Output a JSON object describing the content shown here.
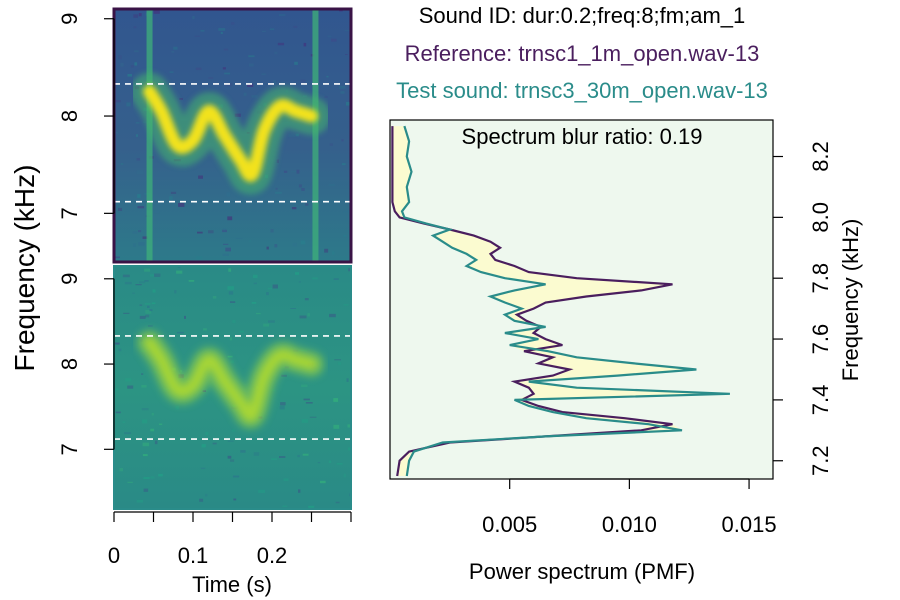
{
  "titles": {
    "sound_id": "Sound ID: dur:0.2;freq:8;fm;am_1",
    "reference": "Reference: trnsc1_1m_open.wav-13",
    "test": "Test sound: trnsc3_30m_open.wav-13"
  },
  "colors": {
    "reference": "#4a1e5e",
    "test": "#2a8c8a",
    "title": "#000000",
    "fill_between": "#fbfbd0",
    "plot_bg": "#eef8ee",
    "spec_dark": "#3b5a8e",
    "spec_mid": "#22908b",
    "spec_bright": "#f2e21c",
    "dashed": "#ffffff"
  },
  "chart_data": [
    {
      "type": "heatmap",
      "name": "reference spectrogram",
      "ylabel": "Frequency (kHz)",
      "ylim": [
        6.5,
        9.1
      ],
      "xlim": [
        0,
        0.3
      ],
      "y_ticks": [
        "7",
        "8",
        "9"
      ],
      "y_tick_values": [
        7,
        8,
        9
      ],
      "dashed_lines_khz": [
        7.12,
        8.33
      ],
      "signal_start_s": 0.045,
      "signal_end_s": 0.255,
      "contour": {
        "t": [
          0.045,
          0.06,
          0.08,
          0.1,
          0.12,
          0.14,
          0.16,
          0.175,
          0.19,
          0.21,
          0.23,
          0.25
        ],
        "f": [
          8.25,
          8.05,
          7.7,
          7.75,
          8.05,
          7.8,
          7.55,
          7.4,
          7.85,
          8.1,
          8.05,
          8.0
        ]
      }
    },
    {
      "type": "heatmap",
      "name": "test spectrogram",
      "ylim": [
        6.3,
        9.15
      ],
      "xlim": [
        0,
        0.3
      ],
      "y_ticks": [
        "7",
        "8",
        "9"
      ],
      "y_tick_values": [
        7,
        8,
        9
      ],
      "x_ticks": [
        "0",
        "0.1",
        "0.2"
      ],
      "x_tick_values": [
        0,
        0.1,
        0.2
      ],
      "x_minor_ticks": [
        0.05,
        0.15,
        0.25,
        0.3
      ],
      "xlabel": "Time (s)",
      "dashed_lines_khz": [
        7.12,
        8.33
      ],
      "contour": {
        "t": [
          0.045,
          0.06,
          0.08,
          0.1,
          0.12,
          0.14,
          0.16,
          0.175,
          0.19,
          0.21,
          0.23,
          0.25
        ],
        "f": [
          8.25,
          8.05,
          7.7,
          7.75,
          8.05,
          7.8,
          7.55,
          7.4,
          7.85,
          8.1,
          8.05,
          8.0
        ]
      }
    },
    {
      "type": "line",
      "name": "power spectrum comparison",
      "annotation": "Spectrum blur ratio: 0.19",
      "xlabel": "Power spectrum (PMF)",
      "ylabel": "Frequency (kHz)",
      "xlim": [
        0,
        0.016
      ],
      "ylim": [
        7.14,
        8.32
      ],
      "x_ticks": [
        "0.005",
        "0.010",
        "0.015"
      ],
      "x_tick_values": [
        0.005,
        0.01,
        0.015
      ],
      "y_ticks": [
        "7.2",
        "7.4",
        "7.6",
        "7.8",
        "8.0",
        "8.2"
      ],
      "y_tick_values": [
        7.2,
        7.4,
        7.6,
        7.8,
        8.0,
        8.2
      ],
      "freq_khz": [
        7.15,
        7.2,
        7.23,
        7.26,
        7.28,
        7.3,
        7.32,
        7.34,
        7.36,
        7.38,
        7.4,
        7.42,
        7.44,
        7.46,
        7.48,
        7.5,
        7.52,
        7.54,
        7.56,
        7.58,
        7.6,
        7.62,
        7.64,
        7.66,
        7.68,
        7.7,
        7.72,
        7.74,
        7.76,
        7.78,
        7.8,
        7.82,
        7.84,
        7.86,
        7.88,
        7.9,
        7.92,
        7.94,
        7.96,
        7.98,
        8.0,
        8.02,
        8.05,
        8.1,
        8.15,
        8.2,
        8.25,
        8.3
      ],
      "series": [
        {
          "name": "Reference",
          "values": [
            0.0003,
            0.0004,
            0.0008,
            0.0025,
            0.0065,
            0.0105,
            0.0118,
            0.0098,
            0.0072,
            0.0062,
            0.0055,
            0.006,
            0.0058,
            0.0052,
            0.0068,
            0.0075,
            0.0062,
            0.0068,
            0.0056,
            0.0072,
            0.0065,
            0.006,
            0.0063,
            0.0057,
            0.0053,
            0.006,
            0.0065,
            0.0082,
            0.0105,
            0.0118,
            0.0078,
            0.0058,
            0.0052,
            0.0044,
            0.0042,
            0.0046,
            0.0042,
            0.0035,
            0.0025,
            0.0014,
            0.0004,
            0.0002,
            0.0001,
            0.0001,
            0.0001,
            0.0001,
            0.0001,
            0.0001
          ]
        },
        {
          "name": "Test sound",
          "values": [
            0.0007,
            0.0008,
            0.001,
            0.0022,
            0.0065,
            0.0122,
            0.0108,
            0.0082,
            0.0068,
            0.0058,
            0.0052,
            0.0142,
            0.0078,
            0.0058,
            0.0095,
            0.0128,
            0.0102,
            0.0078,
            0.0066,
            0.005,
            0.0062,
            0.0048,
            0.0065,
            0.0052,
            0.0048,
            0.0055,
            0.0048,
            0.0042,
            0.0052,
            0.0065,
            0.0048,
            0.0038,
            0.0032,
            0.0036,
            0.0032,
            0.0026,
            0.0022,
            0.0018,
            0.0025,
            0.0015,
            0.0006,
            0.0005,
            0.0008,
            0.0007,
            0.0009,
            0.0007,
            0.0008,
            0.0006
          ]
        }
      ]
    }
  ]
}
